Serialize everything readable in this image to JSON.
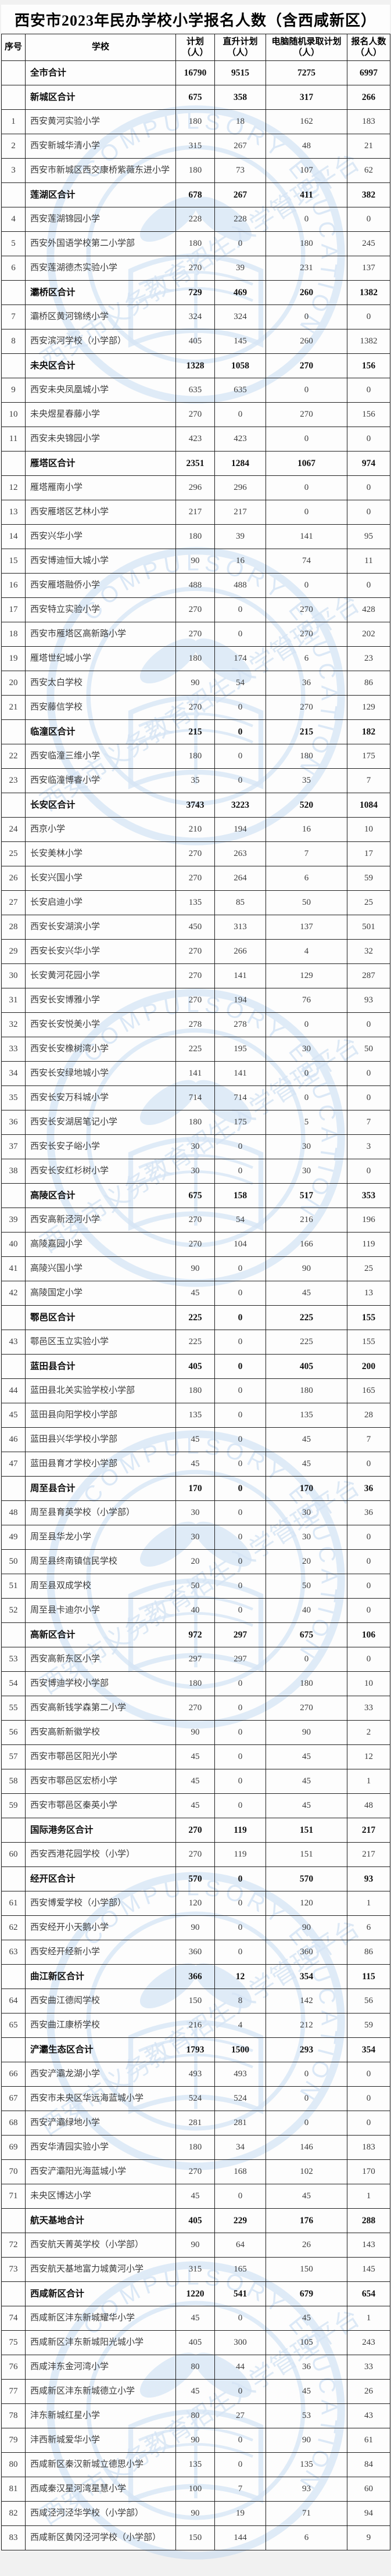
{
  "title": "西安市2023年民办学校小学报名人数（含西咸新区）",
  "columns": [
    {
      "label": "序号",
      "unit": ""
    },
    {
      "label": "学校",
      "unit": ""
    },
    {
      "label": "计划",
      "unit": "（人）"
    },
    {
      "label": "直升计划",
      "unit": "（人）"
    },
    {
      "label": "电脑随机录取计划",
      "unit": "（人）"
    },
    {
      "label": "报名人数",
      "unit": "（人）"
    }
  ],
  "watermark": {
    "text_en": "COMPULSORY EDUCATION",
    "text_zh": "西安市义务教育招生入学管理平台"
  },
  "colors": {
    "watermark_blue": "#aeccec",
    "border": "#1f1f1f",
    "text": "#3b3b3b",
    "bold_text": "#0d0d0d",
    "page_bg": "#f1f1f1",
    "sheet_bg": "#fdfdfd"
  },
  "rows": [
    {
      "seq": "",
      "school": "全市合计",
      "plan": 16790,
      "direct": 9515,
      "computer": 7275,
      "registered": 6997,
      "total": true
    },
    {
      "seq": "",
      "school": "新城区合计",
      "plan": 675,
      "direct": 358,
      "computer": 317,
      "registered": 266,
      "total": true
    },
    {
      "seq": 1,
      "school": "西安黄河实验小学",
      "plan": 180,
      "direct": 18,
      "computer": 162,
      "registered": 183
    },
    {
      "seq": 2,
      "school": "西安新城华清小学",
      "plan": 315,
      "direct": 267,
      "computer": 48,
      "registered": 21
    },
    {
      "seq": 3,
      "school": "西安市新城区西交康桥紫薇东进小学",
      "plan": 180,
      "direct": 73,
      "computer": 107,
      "registered": 62
    },
    {
      "seq": "",
      "school": "莲湖区合计",
      "plan": 678,
      "direct": 267,
      "computer": 411,
      "registered": 382,
      "total": true
    },
    {
      "seq": 4,
      "school": "西安莲湖锦园小学",
      "plan": 228,
      "direct": 228,
      "computer": 0,
      "registered": 0
    },
    {
      "seq": 5,
      "school": "西安外国语学校第二小学部",
      "plan": 180,
      "direct": 0,
      "computer": 180,
      "registered": 245
    },
    {
      "seq": 6,
      "school": "西安莲湖德杰实验小学",
      "plan": 270,
      "direct": 39,
      "computer": 231,
      "registered": 137
    },
    {
      "seq": "",
      "school": "灞桥区合计",
      "plan": 729,
      "direct": 469,
      "computer": 260,
      "registered": 1382,
      "total": true
    },
    {
      "seq": 7,
      "school": "灞桥区黄河锦绣小学",
      "plan": 324,
      "direct": 324,
      "computer": 0,
      "registered": 0
    },
    {
      "seq": 8,
      "school": "西安滨河学校（小学部）",
      "plan": 405,
      "direct": 145,
      "computer": 260,
      "registered": 1382
    },
    {
      "seq": "",
      "school": "未央区合计",
      "plan": 1328,
      "direct": 1058,
      "computer": 270,
      "registered": 156,
      "total": true
    },
    {
      "seq": 9,
      "school": "西安未央凤凰城小学",
      "plan": 635,
      "direct": 635,
      "computer": 0,
      "registered": 0
    },
    {
      "seq": 10,
      "school": "未央煜星春藤小学",
      "plan": 270,
      "direct": 0,
      "computer": 270,
      "registered": 156
    },
    {
      "seq": 11,
      "school": "西安未央锦园小学",
      "plan": 423,
      "direct": 423,
      "computer": 0,
      "registered": 0
    },
    {
      "seq": "",
      "school": "雁塔区合计",
      "plan": 2351,
      "direct": 1284,
      "computer": 1067,
      "registered": 974,
      "total": true
    },
    {
      "seq": 12,
      "school": "雁塔雁南小学",
      "plan": 296,
      "direct": 296,
      "computer": 0,
      "registered": 0
    },
    {
      "seq": 13,
      "school": "西安雁塔区艺林小学",
      "plan": 217,
      "direct": 217,
      "computer": 0,
      "registered": 0
    },
    {
      "seq": 14,
      "school": "西安兴华小学",
      "plan": 180,
      "direct": 39,
      "computer": 141,
      "registered": 95
    },
    {
      "seq": 15,
      "school": "西安博迪恒大城小学",
      "plan": 90,
      "direct": 16,
      "computer": 74,
      "registered": 11
    },
    {
      "seq": 16,
      "school": "西安雁塔融侨小学",
      "plan": 488,
      "direct": 488,
      "computer": 0,
      "registered": 0
    },
    {
      "seq": 17,
      "school": "西安特立实验小学",
      "plan": 270,
      "direct": 0,
      "computer": 270,
      "registered": 428
    },
    {
      "seq": 18,
      "school": "西安市雁塔区高新路小学",
      "plan": 270,
      "direct": 0,
      "computer": 270,
      "registered": 202
    },
    {
      "seq": 19,
      "school": "雁塔世纪城小学",
      "plan": 180,
      "direct": 174,
      "computer": 6,
      "registered": 23
    },
    {
      "seq": 20,
      "school": "西安太白学校",
      "plan": 90,
      "direct": 54,
      "computer": 36,
      "registered": 86
    },
    {
      "seq": 21,
      "school": "西安藤信学校",
      "plan": 270,
      "direct": 0,
      "computer": 270,
      "registered": 129
    },
    {
      "seq": "",
      "school": "临潼区合计",
      "plan": 215,
      "direct": 0,
      "computer": 215,
      "registered": 182,
      "total": true
    },
    {
      "seq": 22,
      "school": "西安临潼三维小学",
      "plan": 180,
      "direct": 0,
      "computer": 180,
      "registered": 175
    },
    {
      "seq": 23,
      "school": "西安临潼博睿小学",
      "plan": 35,
      "direct": 0,
      "computer": 35,
      "registered": 7
    },
    {
      "seq": "",
      "school": "长安区合计",
      "plan": 3743,
      "direct": 3223,
      "computer": 520,
      "registered": 1084,
      "total": true
    },
    {
      "seq": 24,
      "school": "西京小学",
      "plan": 210,
      "direct": 194,
      "computer": 16,
      "registered": 10
    },
    {
      "seq": 25,
      "school": "长安美林小学",
      "plan": 270,
      "direct": 263,
      "computer": 7,
      "registered": 17
    },
    {
      "seq": 26,
      "school": "长安兴国小学",
      "plan": 270,
      "direct": 264,
      "computer": 6,
      "registered": 59
    },
    {
      "seq": 27,
      "school": "长安启迪小学",
      "plan": 135,
      "direct": 85,
      "computer": 50,
      "registered": 25
    },
    {
      "seq": 28,
      "school": "西安长安湖滨小学",
      "plan": 450,
      "direct": 313,
      "computer": 137,
      "registered": 501
    },
    {
      "seq": 29,
      "school": "西安长安兴华小学",
      "plan": 270,
      "direct": 266,
      "computer": 4,
      "registered": 32
    },
    {
      "seq": 30,
      "school": "长安黄河花园小学",
      "plan": 270,
      "direct": 141,
      "computer": 129,
      "registered": 287
    },
    {
      "seq": 31,
      "school": "西安长安博雅小学",
      "plan": 270,
      "direct": 194,
      "computer": 76,
      "registered": 93
    },
    {
      "seq": 32,
      "school": "西安长安悦美小学",
      "plan": 278,
      "direct": 278,
      "computer": 0,
      "registered": 0
    },
    {
      "seq": 33,
      "school": "西安长安橡树湾小学",
      "plan": 225,
      "direct": 195,
      "computer": 30,
      "registered": 50
    },
    {
      "seq": 34,
      "school": "西安长安绿地城小学",
      "plan": 141,
      "direct": 141,
      "computer": 0,
      "registered": 0
    },
    {
      "seq": 35,
      "school": "西安长安万科城小学",
      "plan": 714,
      "direct": 714,
      "computer": 0,
      "registered": 0
    },
    {
      "seq": 36,
      "school": "西安长安湖居笔记小学",
      "plan": 180,
      "direct": 175,
      "computer": 5,
      "registered": 7
    },
    {
      "seq": 37,
      "school": "西安长安子峪小学",
      "plan": 30,
      "direct": 0,
      "computer": 30,
      "registered": 3
    },
    {
      "seq": 38,
      "school": "西安长安红杉树小学",
      "plan": 30,
      "direct": 0,
      "computer": 30,
      "registered": 0
    },
    {
      "seq": "",
      "school": "高陵区合计",
      "plan": 675,
      "direct": 158,
      "computer": 517,
      "registered": 353,
      "total": true
    },
    {
      "seq": 39,
      "school": "西安高新泾河小学",
      "plan": 270,
      "direct": 54,
      "computer": 216,
      "registered": 196
    },
    {
      "seq": 40,
      "school": "高陵嘉园小学",
      "plan": 270,
      "direct": 104,
      "computer": 166,
      "registered": 119
    },
    {
      "seq": 41,
      "school": "高陵兴国小学",
      "plan": 90,
      "direct": 0,
      "computer": 90,
      "registered": 25
    },
    {
      "seq": 42,
      "school": "高陵国定小学",
      "plan": 45,
      "direct": 0,
      "computer": 45,
      "registered": 13
    },
    {
      "seq": "",
      "school": "鄠邑区合计",
      "plan": 225,
      "direct": 0,
      "computer": 225,
      "registered": 155,
      "total": true
    },
    {
      "seq": 43,
      "school": "鄠邑区玉立实验小学",
      "plan": 225,
      "direct": 0,
      "computer": 225,
      "registered": 155
    },
    {
      "seq": "",
      "school": "蓝田县合计",
      "plan": 405,
      "direct": 0,
      "computer": 405,
      "registered": 200,
      "total": true
    },
    {
      "seq": 44,
      "school": "蓝田县北关实验学校小学部",
      "plan": 180,
      "direct": 0,
      "computer": 180,
      "registered": 165
    },
    {
      "seq": 45,
      "school": "蓝田县向阳学校小学部",
      "plan": 135,
      "direct": 0,
      "computer": 135,
      "registered": 28
    },
    {
      "seq": 46,
      "school": "蓝田县兴华学校小学部",
      "plan": 45,
      "direct": 0,
      "computer": 45,
      "registered": 7
    },
    {
      "seq": 47,
      "school": "蓝田县育才学校小学部",
      "plan": 45,
      "direct": 0,
      "computer": 45,
      "registered": 0
    },
    {
      "seq": "",
      "school": "周至县合计",
      "plan": 170,
      "direct": 0,
      "computer": 170,
      "registered": 36,
      "total": true
    },
    {
      "seq": 48,
      "school": "周至县育英学校（小学部）",
      "plan": 30,
      "direct": 0,
      "computer": 30,
      "registered": 36
    },
    {
      "seq": 49,
      "school": "周至县华龙小学",
      "plan": 30,
      "direct": 0,
      "computer": 30,
      "registered": 0
    },
    {
      "seq": 50,
      "school": "周至县终南镇信民学校",
      "plan": 20,
      "direct": 0,
      "computer": 20,
      "registered": 0
    },
    {
      "seq": 51,
      "school": "周至县双成学校",
      "plan": 50,
      "direct": 0,
      "computer": 50,
      "registered": 0
    },
    {
      "seq": 52,
      "school": "周至县卡迪尔小学",
      "plan": 40,
      "direct": 0,
      "computer": 40,
      "registered": 0
    },
    {
      "seq": "",
      "school": "高新区合计",
      "plan": 972,
      "direct": 297,
      "computer": 675,
      "registered": 106,
      "total": true
    },
    {
      "seq": 53,
      "school": "西安高新东区小学",
      "plan": 297,
      "direct": 297,
      "computer": 0,
      "registered": 0
    },
    {
      "seq": 54,
      "school": "西安博迪学校小学部",
      "plan": 180,
      "direct": 0,
      "computer": 180,
      "registered": 10
    },
    {
      "seq": 55,
      "school": "西安高新钱学森第二小学",
      "plan": 270,
      "direct": 0,
      "computer": 270,
      "registered": 33
    },
    {
      "seq": 56,
      "school": "西安高新新徽学校",
      "plan": 90,
      "direct": 0,
      "computer": 90,
      "registered": 2
    },
    {
      "seq": 57,
      "school": "西安市鄠邑区阳光小学",
      "plan": 45,
      "direct": 0,
      "computer": 45,
      "registered": 12
    },
    {
      "seq": 58,
      "school": "西安市鄠邑区宏桥小学",
      "plan": 45,
      "direct": 0,
      "computer": 45,
      "registered": 1
    },
    {
      "seq": 59,
      "school": "西安市鄠邑区秦英小学",
      "plan": 45,
      "direct": 0,
      "computer": 45,
      "registered": 48
    },
    {
      "seq": "",
      "school": "国际港务区合计",
      "plan": 270,
      "direct": 119,
      "computer": 151,
      "registered": 217,
      "total": true
    },
    {
      "seq": 60,
      "school": "西安西港花园学校（小学）",
      "plan": 270,
      "direct": 119,
      "computer": 151,
      "registered": 217
    },
    {
      "seq": "",
      "school": "经开区合计",
      "plan": 570,
      "direct": 0,
      "computer": 570,
      "registered": 93,
      "total": true
    },
    {
      "seq": 61,
      "school": "西安博爱学校（小学部）",
      "plan": 120,
      "direct": 0,
      "computer": 120,
      "registered": 1
    },
    {
      "seq": 62,
      "school": "西安经开小天鹅小学",
      "plan": 90,
      "direct": 0,
      "computer": 90,
      "registered": 6
    },
    {
      "seq": 63,
      "school": "西安经开经新小学",
      "plan": 360,
      "direct": 0,
      "computer": 360,
      "registered": 86
    },
    {
      "seq": "",
      "school": "曲江新区合计",
      "plan": 366,
      "direct": 12,
      "computer": 354,
      "registered": 115,
      "total": true
    },
    {
      "seq": 64,
      "school": "西安曲江德闳学校",
      "plan": 150,
      "direct": 8,
      "computer": 142,
      "registered": 56
    },
    {
      "seq": 65,
      "school": "西安曲江康桥学校",
      "plan": 216,
      "direct": 4,
      "computer": 212,
      "registered": 59
    },
    {
      "seq": "",
      "school": "浐灞生态区合计",
      "plan": 1793,
      "direct": 1500,
      "computer": 293,
      "registered": 354,
      "total": true
    },
    {
      "seq": 66,
      "school": "西安浐灞龙湖小学",
      "plan": 493,
      "direct": 493,
      "computer": 0,
      "registered": 0
    },
    {
      "seq": 67,
      "school": "西安市未央区华远海蓝城小学",
      "plan": 524,
      "direct": 524,
      "computer": 0,
      "registered": 0
    },
    {
      "seq": 68,
      "school": "西安浐灞绿地小学",
      "plan": 281,
      "direct": 281,
      "computer": 0,
      "registered": 0
    },
    {
      "seq": 69,
      "school": "西安华清园实验小学",
      "plan": 180,
      "direct": 34,
      "computer": 146,
      "registered": 183
    },
    {
      "seq": 70,
      "school": "西安浐灞阳光海蓝城小学",
      "plan": 270,
      "direct": 168,
      "computer": 102,
      "registered": 170
    },
    {
      "seq": 71,
      "school": "未央区博达小学",
      "plan": 45,
      "direct": 0,
      "computer": 45,
      "registered": 1
    },
    {
      "seq": "",
      "school": "航天基地合计",
      "plan": 405,
      "direct": 229,
      "computer": 176,
      "registered": 288,
      "total": true
    },
    {
      "seq": 72,
      "school": "西安航天菁英学校（小学部）",
      "plan": 90,
      "direct": 64,
      "computer": 26,
      "registered": 143
    },
    {
      "seq": 73,
      "school": "西安航天基地富力城黄河小学",
      "plan": 315,
      "direct": 165,
      "computer": 150,
      "registered": 145
    },
    {
      "seq": "",
      "school": "西咸新区合计",
      "plan": 1220,
      "direct": 541,
      "computer": 679,
      "registered": 654,
      "total": true
    },
    {
      "seq": 74,
      "school": "西咸新区沣东新城耀华小学",
      "plan": 45,
      "direct": 0,
      "computer": 45,
      "registered": 1
    },
    {
      "seq": 75,
      "school": "西咸新区沣东新城阳光城小学",
      "plan": 405,
      "direct": 300,
      "computer": 105,
      "registered": 243
    },
    {
      "seq": 76,
      "school": "西咸沣东金河湾小学",
      "plan": 80,
      "direct": 44,
      "computer": 36,
      "registered": 33
    },
    {
      "seq": 77,
      "school": "西咸新区沣东新城德立小学",
      "plan": 45,
      "direct": 0,
      "computer": 45,
      "registered": 26
    },
    {
      "seq": 78,
      "school": "沣东新城红星小学",
      "plan": 80,
      "direct": 27,
      "computer": 53,
      "registered": 43
    },
    {
      "seq": 79,
      "school": "沣西新城爱华小学",
      "plan": 90,
      "direct": 0,
      "computer": 90,
      "registered": 61
    },
    {
      "seq": 80,
      "school": "西咸新区秦汉新城立德思小学",
      "plan": 135,
      "direct": 0,
      "computer": 135,
      "registered": 84
    },
    {
      "seq": 81,
      "school": "西咸秦汉星河湾星慧小学",
      "plan": 100,
      "direct": 7,
      "computer": 93,
      "registered": 60
    },
    {
      "seq": 82,
      "school": "西咸泾河泾华学校（小学部）",
      "plan": 90,
      "direct": 19,
      "computer": 71,
      "registered": 94
    },
    {
      "seq": 83,
      "school": "西咸新区黄冈泾河学校（小学部）",
      "plan": 150,
      "direct": 144,
      "computer": 6,
      "registered": 9
    }
  ]
}
